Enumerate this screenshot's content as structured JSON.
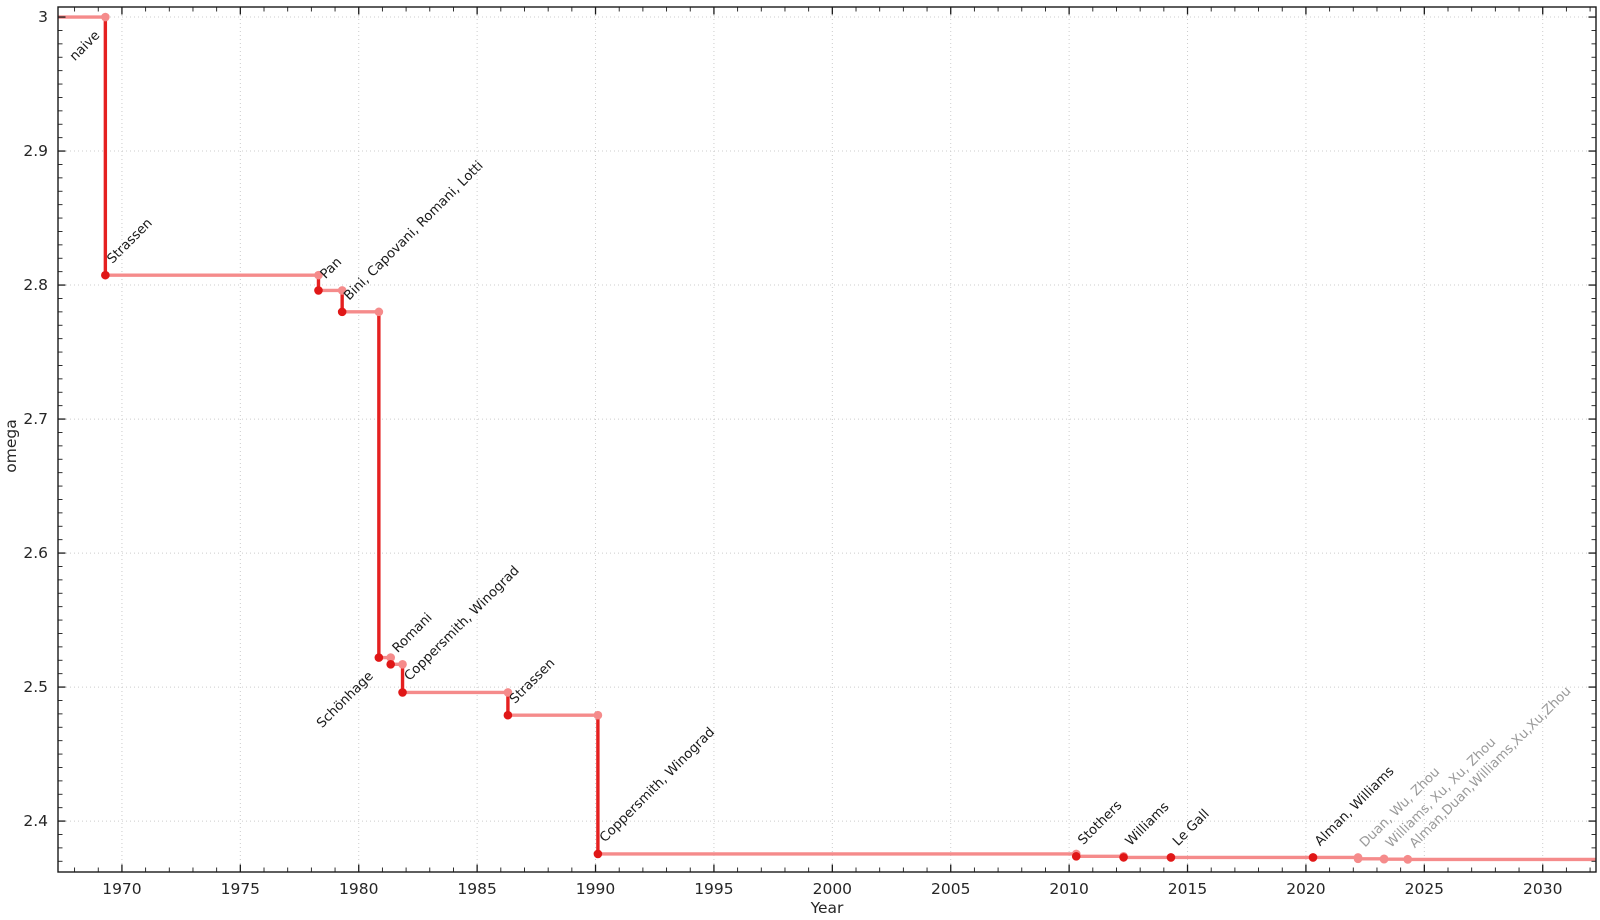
{
  "chart_data": {
    "type": "line",
    "subtype": "step",
    "title": "",
    "xlabel": "Year",
    "ylabel": "omega",
    "xlim": [
      1967.3,
      2032.25
    ],
    "ylim": [
      2.362,
      3.0075
    ],
    "x_major_ticks": [
      1970,
      1975,
      1980,
      1985,
      1990,
      1995,
      2000,
      2005,
      2010,
      2015,
      2020,
      2025,
      2030
    ],
    "x_tick_labels": [
      "1970",
      "1975",
      "1980",
      "1985",
      "1990",
      "1995",
      "2000",
      "2005",
      "2010",
      "2015",
      "2020",
      "2025",
      "2030"
    ],
    "y_major_ticks": [
      2.4,
      2.5,
      2.6,
      2.7,
      2.8,
      2.9,
      3.0
    ],
    "y_tick_labels": [
      "2.4",
      "2.5",
      "2.6",
      "2.7",
      "2.8",
      "2.9",
      "3"
    ],
    "x_minor_step": 1,
    "y_minor_step": 0.01,
    "grid": "dotted gridlines at major ticks, full box frame with mirrored inward ticks",
    "legend": "none",
    "start": {
      "value": 3.0,
      "label": "naive",
      "label_x": 1969.3,
      "label_side": "below",
      "label_color": "black",
      "point": "light"
    },
    "events": [
      {
        "year": 1969,
        "x": 1969.3,
        "value": 2.8074,
        "authors": "Strassen",
        "point": "dark",
        "label_side": "above",
        "label_color": "black"
      },
      {
        "year": 1978,
        "x": 1978.3,
        "value": 2.796,
        "authors": "Pan",
        "point": "dark",
        "label_side": "above",
        "label_color": "black"
      },
      {
        "year": 1979,
        "x": 1979.3,
        "value": 2.78,
        "authors": "Bini, Capovani, Romani, Lotti",
        "point": "dark",
        "label_side": "above",
        "label_color": "black"
      },
      {
        "year": 1981,
        "x": 1980.85,
        "value": 2.522,
        "authors": "Schönhage",
        "point": "dark",
        "label_side": "below",
        "label_color": "black"
      },
      {
        "year": 1981,
        "x": 1981.35,
        "value": 2.517,
        "authors": "Romani",
        "point": "dark",
        "label_side": "above",
        "label_color": "black"
      },
      {
        "year": 1982,
        "x": 1981.85,
        "value": 2.496,
        "authors": "Coppersmith, Winograd",
        "point": "dark",
        "label_side": "above",
        "label_color": "black"
      },
      {
        "year": 1986,
        "x": 1986.3,
        "value": 2.479,
        "authors": "Strassen",
        "point": "dark",
        "label_side": "above",
        "label_color": "black"
      },
      {
        "year": 1990,
        "x": 1990.1,
        "value": 2.3755,
        "authors": "Coppersmith, Winograd",
        "point": "dark",
        "label_side": "above",
        "label_color": "black"
      },
      {
        "year": 2010,
        "x": 2010.3,
        "value": 2.3737,
        "authors": "Stothers",
        "point": "dark",
        "label_side": "above",
        "label_color": "black"
      },
      {
        "year": 2012,
        "x": 2012.3,
        "value": 2.3729,
        "authors": "Williams",
        "point": "dark",
        "label_side": "above",
        "label_color": "black"
      },
      {
        "year": 2014,
        "x": 2014.3,
        "value": 2.3728639,
        "authors": "Le Gall",
        "point": "dark",
        "label_side": "above",
        "label_color": "black"
      },
      {
        "year": 2020,
        "x": 2020.3,
        "value": 2.3728596,
        "authors": "Alman, Williams",
        "point": "dark",
        "label_side": "above",
        "label_color": "black"
      },
      {
        "year": 2022,
        "x": 2022.2,
        "value": 2.371866,
        "authors": "Duan, Wu, Zhou",
        "point": "light",
        "label_side": "above",
        "label_color": "gray"
      },
      {
        "year": 2023,
        "x": 2023.3,
        "value": 2.371552,
        "authors": "Williams, Xu, Xu, Zhou",
        "point": "light",
        "label_side": "above",
        "label_color": "gray"
      },
      {
        "year": 2024,
        "x": 2024.3,
        "value": 2.371339,
        "authors": "Alman,Duan,Williams,Xu,Xu,Zhou",
        "point": "light",
        "label_side": "above",
        "label_color": "gray"
      }
    ],
    "extend_to_xmax": true,
    "colors": {
      "background": "#ffffff",
      "line_light": "#f58b8b",
      "line_dark": "#e52020",
      "point_dark": "#e01717",
      "point_light": "#f58b8b",
      "grid": "#cccccc",
      "axis": "#1a1a1a",
      "tick_label": "#262626",
      "label_black": "#1a1a1a",
      "label_gray": "#9a9a9a"
    }
  }
}
